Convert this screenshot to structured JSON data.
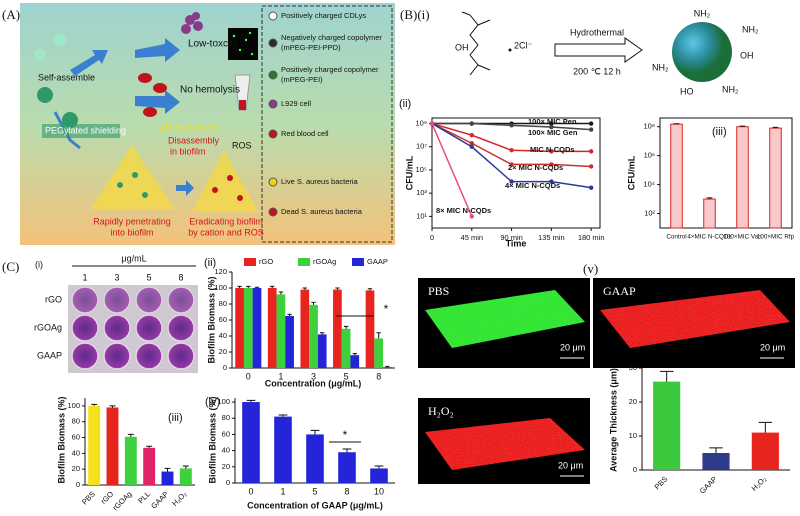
{
  "figure": {
    "A": {
      "label": "(A)",
      "self_assemble": "Self-assemble",
      "pegylated": "PEGylated shielding",
      "low_toxicity": "Low-toxcity",
      "no_hemolysis": "No hemolysis",
      "ph_responsive": "pH-responsive",
      "disassembly": [
        "Disassembly",
        "in biofilm"
      ],
      "ros": "ROS",
      "penetrating": [
        "Rapidly penetrating",
        "into biofilm"
      ],
      "eradicating": [
        "Eradicating biofilm",
        "by cation and ROS"
      ],
      "legend": [
        [
          "Positively charged CDLys"
        ],
        [
          "Negatively charged copolymer",
          "(mPEG-PEI-PPD)"
        ],
        [
          "Positively charged copolymer",
          "(mPEG-PEI)"
        ],
        [
          "L929 cell"
        ],
        [
          "Red blood cell"
        ],
        [
          "Live S. aureus bacteria"
        ],
        [
          "Dead S. aureus bacteria"
        ]
      ]
    },
    "B": {
      "label": "(B)(i)",
      "oh": "OH",
      "chloride": "2Cl⁻",
      "hydrothermal": "Hydrothermal",
      "conditions": "200 ℃ 12 h",
      "groups": [
        "NH₂",
        "NH₂",
        "OH",
        "NH₂",
        "HO",
        "NH₂"
      ]
    },
    "C": {
      "label": "(C)",
      "sub": "(i)",
      "unit": "μg/mL",
      "columns": [
        "1",
        "3",
        "5",
        "8"
      ],
      "rows": [
        "rGO",
        "rGOAg",
        "GAAP"
      ]
    },
    "V": {
      "label": "(v)",
      "images": [
        "PBS",
        "GAAP",
        "H₂O₂"
      ],
      "scale": [
        "20 μm",
        "20 μm",
        "20 μm"
      ]
    }
  },
  "chart_data": [
    {
      "type": "line",
      "panel_label": "(ii)",
      "xlabel": "Time",
      "ylabel": "CFU/mL",
      "log_scale": true,
      "frame": true,
      "x": [
        0,
        45,
        90,
        135,
        180
      ],
      "xlim": [
        0,
        190
      ],
      "xticks": [
        0,
        {
          "value": 45,
          "label": "45 min"
        },
        {
          "value": 90,
          "label": "90 min"
        },
        {
          "value": 135,
          "label": "135 min"
        },
        {
          "value": 180,
          "label": "180 min"
        }
      ],
      "ylim": [
        1,
        3000000000
      ],
      "yticks": [
        {
          "value": 10,
          "label": "10¹"
        },
        {
          "value": 1000,
          "label": "10³"
        },
        {
          "value": 100000,
          "label": "10⁵"
        },
        {
          "value": 10000000,
          "label": "10⁷"
        },
        {
          "value": 1000000000,
          "label": "10⁹"
        }
      ],
      "series": [
        {
          "name": "100× MIC Pen",
          "color": "#1a1a1a",
          "values": [
            1000000000,
            1000000000,
            1000000000,
            1000000000,
            1000000000
          ]
        },
        {
          "name": "100× MIC Gen",
          "color": "#444444",
          "values": [
            1000000000,
            1000000000,
            700000000,
            500000000,
            300000000
          ]
        },
        {
          "name": "MIC N-CQDs",
          "color": "#d62728",
          "values": [
            1000000000,
            100000000,
            5000000,
            4000000,
            4000000
          ]
        },
        {
          "name": "2× MIC N-CQDs",
          "color": "#c9302c",
          "values": [
            1000000000,
            20000000,
            300000,
            300000,
            200000
          ]
        },
        {
          "name": "4× MIC N-CQDs",
          "color": "#2b3a9a",
          "values": [
            1000000000,
            10000000,
            10000,
            10000,
            3000
          ]
        },
        {
          "name": "8× MIC N-CQDs",
          "color": "#e8507a",
          "values": [
            1000000000,
            10,
            null,
            null,
            null
          ]
        }
      ]
    },
    {
      "type": "bar",
      "panel_label": "(iii)",
      "ylabel": "CFU/mL",
      "log_scale": true,
      "frame": true,
      "categories": [
        "Control",
        "4×MIC N-CQDs",
        "100×MIC Van",
        "100×MIC Rfp"
      ],
      "values": [
        150000000,
        1000,
        100000000,
        80000000
      ],
      "errors": [
        10000000,
        200,
        10000000,
        10000000
      ],
      "color": "#f7c9c9",
      "edgecolor": "#d62728",
      "ylim": [
        10,
        400000000
      ],
      "yticks": [
        {
          "value": 100,
          "label": "10²"
        },
        {
          "value": 10000,
          "label": "10⁴"
        },
        {
          "value": 1000000,
          "label": "10⁶"
        },
        {
          "value": 100000000,
          "label": "10⁸"
        }
      ]
    },
    {
      "type": "bar",
      "panel_label": "(ii)",
      "xlabel": "Concentration (μg/mL)",
      "ylabel": "Biofilm Biomass (%)",
      "legend": "top",
      "categories": [
        "0",
        "1",
        "3",
        "5",
        "8"
      ],
      "ylim": [
        0,
        120
      ],
      "yticks": [
        0,
        20,
        40,
        60,
        80,
        100,
        120
      ],
      "series": [
        {
          "name": "rGO",
          "color": "#e8241f",
          "values": [
            100,
            100,
            98,
            98,
            97
          ],
          "errors": [
            2,
            2,
            2,
            2,
            2
          ]
        },
        {
          "name": "rGOAg",
          "color": "#3dd13d",
          "values": [
            100,
            92,
            79,
            49,
            37
          ],
          "errors": [
            2,
            3,
            3,
            3,
            7
          ]
        },
        {
          "name": "GAAP",
          "color": "#2424d8",
          "values": [
            100,
            65,
            42,
            16,
            1
          ],
          "errors": [
            1,
            2,
            2,
            2,
            1
          ]
        }
      ],
      "annotations": [
        {
          "text": "*"
        }
      ]
    },
    {
      "type": "bar",
      "panel_label": "(iii)",
      "ylabel": "Biofilm Biomass (%)",
      "categories": [
        "PBS",
        "rGO",
        "rGOAg",
        "PLL",
        "GAAP",
        "H₂O₂"
      ],
      "values": [
        100,
        98,
        61,
        47,
        17,
        21
      ],
      "errors": [
        2,
        2,
        3,
        2,
        4,
        3
      ],
      "colors": [
        "#f5e11a",
        "#e8241f",
        "#3dd13d",
        "#e0246a",
        "#2424d8",
        "#3dd13d"
      ],
      "ylim": [
        0,
        110
      ],
      "yticks": [
        0,
        20,
        40,
        60,
        80,
        100
      ]
    },
    {
      "type": "bar",
      "panel_label": "(iv)",
      "xlabel": "Concentration of GAAP (μg/mL)",
      "ylabel": "Biofilm Biomass (%)",
      "categories": [
        "0",
        "1",
        "5",
        "8",
        "10"
      ],
      "values": [
        100,
        82,
        60,
        38,
        18
      ],
      "errors": [
        2,
        2,
        5,
        4,
        3
      ],
      "color": "#2424d8",
      "ylim": [
        0,
        105
      ],
      "yticks": [
        0,
        20,
        40,
        60,
        80,
        100
      ],
      "annotations": [
        {
          "text": "*"
        }
      ]
    },
    {
      "type": "bar",
      "ylabel": "Average Thickness (μm)",
      "categories": [
        "PBS",
        "GAAP",
        "H₂O₂"
      ],
      "values": [
        26,
        5,
        11
      ],
      "errors": [
        3,
        1.5,
        3
      ],
      "colors": [
        "#3cc83c",
        "#2e3a8a",
        "#e8241f"
      ],
      "ylim": [
        0,
        30
      ],
      "yticks": [
        0,
        10,
        20,
        30
      ]
    }
  ]
}
